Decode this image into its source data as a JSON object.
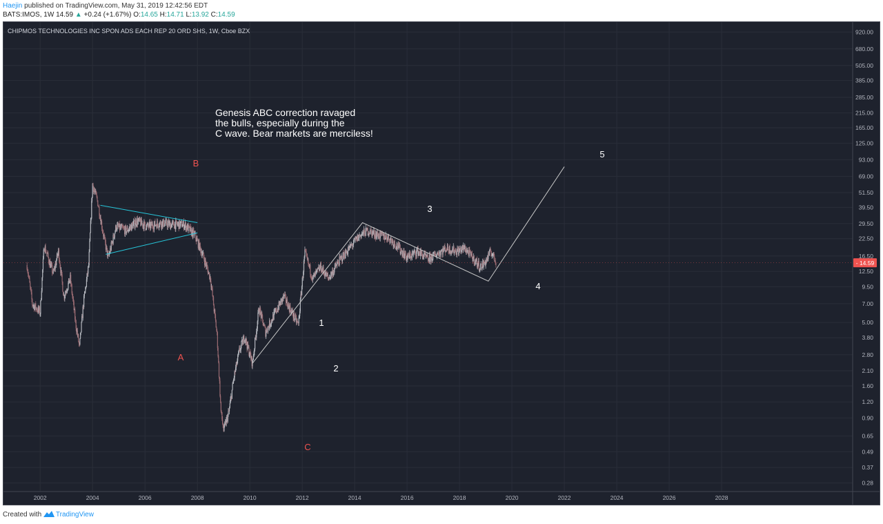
{
  "header": {
    "author": "Haejin",
    "published_text": "published on TradingView.com, May 31, 2019 12:42:56 EDT",
    "symbol": "BATS:IMOS, 1W",
    "last": "14.59",
    "arrow": "▲",
    "change": "+0.24 (+1.67%)",
    "o_label": "O:",
    "o_val": "14.65",
    "h_label": "H:",
    "h_val": "14.71",
    "l_label": "L:",
    "l_val": "13.92",
    "c_label": "C:",
    "c_val": "14.59"
  },
  "footer": {
    "created_with": "Created with",
    "brand": "TradingView"
  },
  "chart_data": {
    "type": "candlestick",
    "title": "CHIPMOS TECHNOLOGIES INC SPON ADS EACH REP 20 ORD SHS, 1W, Cboe BZX",
    "y_scale": "log",
    "ylim": [
      0.24,
      1100
    ],
    "xlim": [
      2000.6,
      2033.0
    ],
    "y_ticks": [
      "920.00",
      "680.00",
      "505.00",
      "385.00",
      "285.00",
      "215.00",
      "165.00",
      "125.00",
      "93.00",
      "69.00",
      "51.50",
      "39.50",
      "29.50",
      "22.50",
      "16.50",
      "12.50",
      "9.50",
      "7.00",
      "5.00",
      "3.80",
      "2.80",
      "2.10",
      "1.60",
      "1.20",
      "0.90",
      "0.65",
      "0.49",
      "0.37",
      "0.28"
    ],
    "x_ticks": [
      "2002",
      "2004",
      "2006",
      "2008",
      "2010",
      "2012",
      "2014",
      "2016",
      "2018",
      "2020",
      "2022",
      "2024",
      "2026",
      "2028"
    ],
    "last_price": "14.59",
    "grid": true,
    "price_path": [
      [
        2001.5,
        14
      ],
      [
        2001.7,
        7
      ],
      [
        2002.0,
        6
      ],
      [
        2002.15,
        20
      ],
      [
        2002.5,
        12
      ],
      [
        2002.7,
        18
      ],
      [
        2002.9,
        8
      ],
      [
        2003.15,
        11
      ],
      [
        2003.35,
        5
      ],
      [
        2003.5,
        3.2
      ],
      [
        2003.65,
        7
      ],
      [
        2003.85,
        14
      ],
      [
        2004.0,
        60
      ],
      [
        2004.2,
        43
      ],
      [
        2004.45,
        22
      ],
      [
        2004.6,
        16
      ],
      [
        2004.9,
        28
      ],
      [
        2005.3,
        26
      ],
      [
        2005.7,
        31
      ],
      [
        2006.1,
        28
      ],
      [
        2006.6,
        30
      ],
      [
        2007.0,
        29
      ],
      [
        2007.5,
        29
      ],
      [
        2007.9,
        24
      ],
      [
        2008.2,
        17
      ],
      [
        2008.5,
        11
      ],
      [
        2008.75,
        4
      ],
      [
        2008.9,
        1.0
      ],
      [
        2009.0,
        0.72
      ],
      [
        2009.2,
        1.0
      ],
      [
        2009.4,
        1.9
      ],
      [
        2009.6,
        3.0
      ],
      [
        2009.8,
        3.9
      ],
      [
        2010.1,
        2.4
      ],
      [
        2010.35,
        6.5
      ],
      [
        2010.6,
        4.2
      ],
      [
        2010.9,
        5.6
      ],
      [
        2011.3,
        8.0
      ],
      [
        2011.6,
        6.0
      ],
      [
        2011.85,
        4.8
      ],
      [
        2012.1,
        17.5
      ],
      [
        2012.4,
        11
      ],
      [
        2012.7,
        13.5
      ],
      [
        2013.0,
        11
      ],
      [
        2013.4,
        15
      ],
      [
        2013.8,
        19
      ],
      [
        2014.2,
        24
      ],
      [
        2014.5,
        26
      ],
      [
        2014.9,
        24
      ],
      [
        2015.3,
        23
      ],
      [
        2015.7,
        19
      ],
      [
        2016.0,
        16
      ],
      [
        2016.4,
        18
      ],
      [
        2016.8,
        15.5
      ],
      [
        2017.1,
        17
      ],
      [
        2017.5,
        19
      ],
      [
        2017.9,
        18
      ],
      [
        2018.2,
        19
      ],
      [
        2018.5,
        16
      ],
      [
        2018.8,
        13.5
      ],
      [
        2019.0,
        15
      ],
      [
        2019.2,
        18
      ],
      [
        2019.41,
        14.59
      ]
    ],
    "annotations": {
      "note": "Genesis ABC correction ravaged the bulls, especially during the C wave. Bear markets are merciless!",
      "note_lines": [
        "Genesis ABC correction ravaged",
        "the bulls, especially during the",
        "C wave. Bear markets are merciless!"
      ],
      "wave_labels": [
        {
          "text": "A",
          "color": "#ef5350"
        },
        {
          "text": "B",
          "color": "#ef5350"
        },
        {
          "text": "C",
          "color": "#ef5350"
        },
        {
          "text": "1",
          "color": "#ffffff"
        },
        {
          "text": "2",
          "color": "#ffffff"
        },
        {
          "text": "3",
          "color": "#ffffff"
        },
        {
          "text": "4",
          "color": "#ffffff"
        },
        {
          "text": "5",
          "color": "#ffffff"
        }
      ],
      "wave_path_points": [
        [
          2010.1,
          2.4
        ],
        [
          2014.3,
          30
        ],
        [
          2019.1,
          10.5
        ],
        [
          2022.0,
          82
        ]
      ],
      "triangle_upper": [
        [
          2004.3,
          41
        ],
        [
          2008.0,
          30
        ]
      ],
      "triangle_lower": [
        [
          2004.5,
          17
        ],
        [
          2008.0,
          25
        ]
      ]
    },
    "colors": {
      "background": "#1e222d",
      "grid": "#2a2e39",
      "up": "#b5b8bf",
      "down": "#9a6b72",
      "triangle": "#26c6da",
      "wave_line": "#c8c8c8",
      "price_tag": "#ef5350",
      "text": "#d1d4dc"
    }
  }
}
